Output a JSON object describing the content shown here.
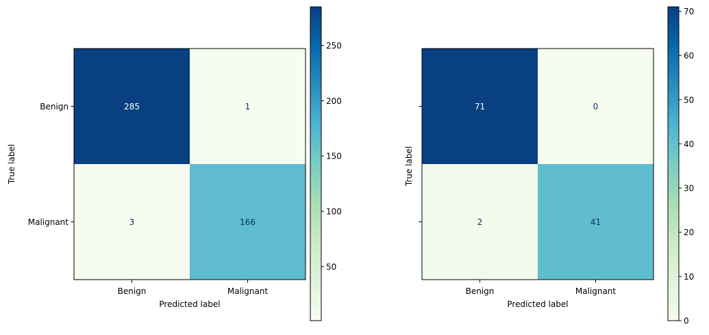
{
  "chart_data": [
    {
      "type": "heatmap",
      "title": "",
      "xlabel": "Predicted label",
      "ylabel": "True label",
      "x_categories": [
        "Benign",
        "Malignant"
      ],
      "y_categories": [
        "Benign",
        "Malignant"
      ],
      "values": [
        [
          285,
          1
        ],
        [
          3,
          166
        ]
      ],
      "colormap": "GnBu",
      "colorbar": {
        "range": [
          1,
          285
        ],
        "ticks": [
          50,
          100,
          150,
          200,
          250
        ]
      }
    },
    {
      "type": "heatmap",
      "title": "",
      "xlabel": "Predicted label",
      "ylabel": "True label",
      "x_categories": [
        "Benign",
        "Malignant"
      ],
      "y_categories": [
        "Benign",
        "Malignant"
      ],
      "values": [
        [
          71,
          0
        ],
        [
          2,
          41
        ]
      ],
      "colormap": "GnBu",
      "colorbar": {
        "range": [
          0,
          71
        ],
        "ticks": [
          0,
          10,
          20,
          30,
          40,
          50,
          60,
          70
        ]
      }
    }
  ]
}
